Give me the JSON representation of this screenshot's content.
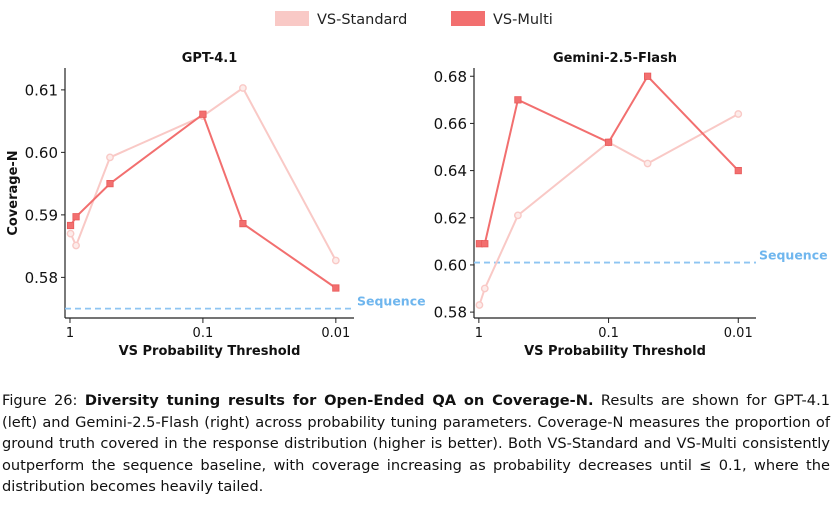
{
  "legend": {
    "items": [
      {
        "label": "VS-Standard",
        "color": "#f9c9c6"
      },
      {
        "label": "VS-Multi",
        "color": "#f26f6f"
      }
    ]
  },
  "baseline_label": "Sequence",
  "caption": {
    "figure_label": "Figure 26:",
    "bold_title": "Diversity tuning results for Open-Ended QA on Coverage-N.",
    "body": "Results are shown for GPT-4.1 (left) and Gemini-2.5-Flash (right) across probability tuning parameters. Coverage-N measures the proportion of ground truth covered in the response distribution (higher is better). Both VS-Standard and VS-Multi consistently outperform the sequence baseline, with coverage increasing as probability decreases until ",
    "threshold": "≤ 0.1",
    "tail": ", where the distribution becomes heavily tailed."
  },
  "chart_data": [
    {
      "type": "line",
      "title": "GPT-4.1",
      "xlabel": "VS Probability Threshold",
      "ylabel": "Coverage-N",
      "xscale": "log-reversed",
      "xlim": [
        1.09,
        0.0073
      ],
      "ylim": [
        0.5735,
        0.6135
      ],
      "xticks": [
        {
          "value": 1,
          "label": "1"
        },
        {
          "value": 0.1,
          "label": "0.1"
        },
        {
          "value": 0.01,
          "label": "0.01"
        }
      ],
      "yticks": [
        {
          "value": 0.58,
          "label": "0.58"
        },
        {
          "value": 0.59,
          "label": "0.59"
        },
        {
          "value": 0.6,
          "label": "0.60"
        },
        {
          "value": 0.61,
          "label": "0.61"
        }
      ],
      "baseline": {
        "name": "Sequence",
        "value": 0.575
      },
      "series": [
        {
          "name": "VS-Standard",
          "marker": "circle",
          "points": [
            [
              0.99,
              0.587
            ],
            [
              0.9,
              0.5851
            ],
            [
              0.5,
              0.5992
            ],
            [
              0.1,
              0.6058
            ],
            [
              0.05,
              0.6103
            ],
            [
              0.01,
              0.5827
            ]
          ]
        },
        {
          "name": "VS-Multi",
          "marker": "square",
          "points": [
            [
              0.99,
              0.5883
            ],
            [
              0.9,
              0.5897
            ],
            [
              0.5,
              0.595
            ],
            [
              0.1,
              0.6061
            ],
            [
              0.05,
              0.5886
            ],
            [
              0.01,
              0.5783
            ]
          ]
        }
      ]
    },
    {
      "type": "line",
      "title": "Gemini-2.5-Flash",
      "xlabel": "VS Probability Threshold",
      "ylabel": "",
      "xscale": "log-reversed",
      "xlim": [
        1.09,
        0.0073
      ],
      "ylim": [
        0.5775,
        0.6835
      ],
      "xticks": [
        {
          "value": 1,
          "label": "1"
        },
        {
          "value": 0.1,
          "label": "0.1"
        },
        {
          "value": 0.01,
          "label": "0.01"
        }
      ],
      "yticks": [
        {
          "value": 0.58,
          "label": "0.58"
        },
        {
          "value": 0.6,
          "label": "0.60"
        },
        {
          "value": 0.62,
          "label": "0.62"
        },
        {
          "value": 0.64,
          "label": "0.64"
        },
        {
          "value": 0.66,
          "label": "0.66"
        },
        {
          "value": 0.68,
          "label": "0.68"
        }
      ],
      "baseline": {
        "name": "Sequence",
        "value": 0.601
      },
      "series": [
        {
          "name": "VS-Standard",
          "marker": "circle",
          "points": [
            [
              0.99,
              0.583
            ],
            [
              0.9,
              0.59
            ],
            [
              0.5,
              0.621
            ],
            [
              0.1,
              0.652
            ],
            [
              0.05,
              0.643
            ],
            [
              0.01,
              0.664
            ]
          ]
        },
        {
          "name": "VS-Multi",
          "marker": "square",
          "points": [
            [
              0.99,
              0.609
            ],
            [
              0.9,
              0.609
            ],
            [
              0.5,
              0.67
            ],
            [
              0.1,
              0.652
            ],
            [
              0.05,
              0.68
            ],
            [
              0.01,
              0.64
            ]
          ]
        }
      ]
    }
  ]
}
